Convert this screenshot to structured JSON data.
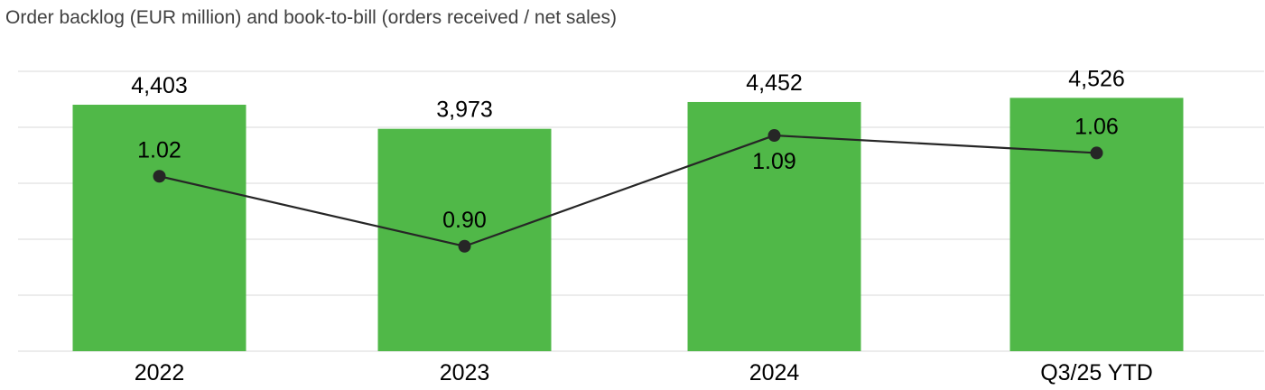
{
  "chart_data": {
    "type": "bar",
    "title": "Order backlog (EUR million) and book-to-bill (orders received / net sales)",
    "categories": [
      "2022",
      "2023",
      "2024",
      "Q3/25 YTD"
    ],
    "series": [
      {
        "name": "",
        "type": "bar",
        "values": [
          4403,
          3973,
          4452,
          4526
        ],
        "labels": [
          "4,403",
          "3,973",
          "4,452",
          "4,526"
        ]
      },
      {
        "name": "",
        "type": "line",
        "values": [
          1.02,
          0.9,
          1.09,
          1.06
        ],
        "labels": [
          "1.02",
          "0.90",
          "1.09",
          "1.06"
        ]
      }
    ],
    "bar_ylim": [
      0,
      5000
    ],
    "line_ylim": [
      0.72,
      1.2
    ],
    "grid": true,
    "colors": {
      "bar": "#50b848",
      "line": "#262626",
      "grid": "#d9d9d9"
    }
  }
}
